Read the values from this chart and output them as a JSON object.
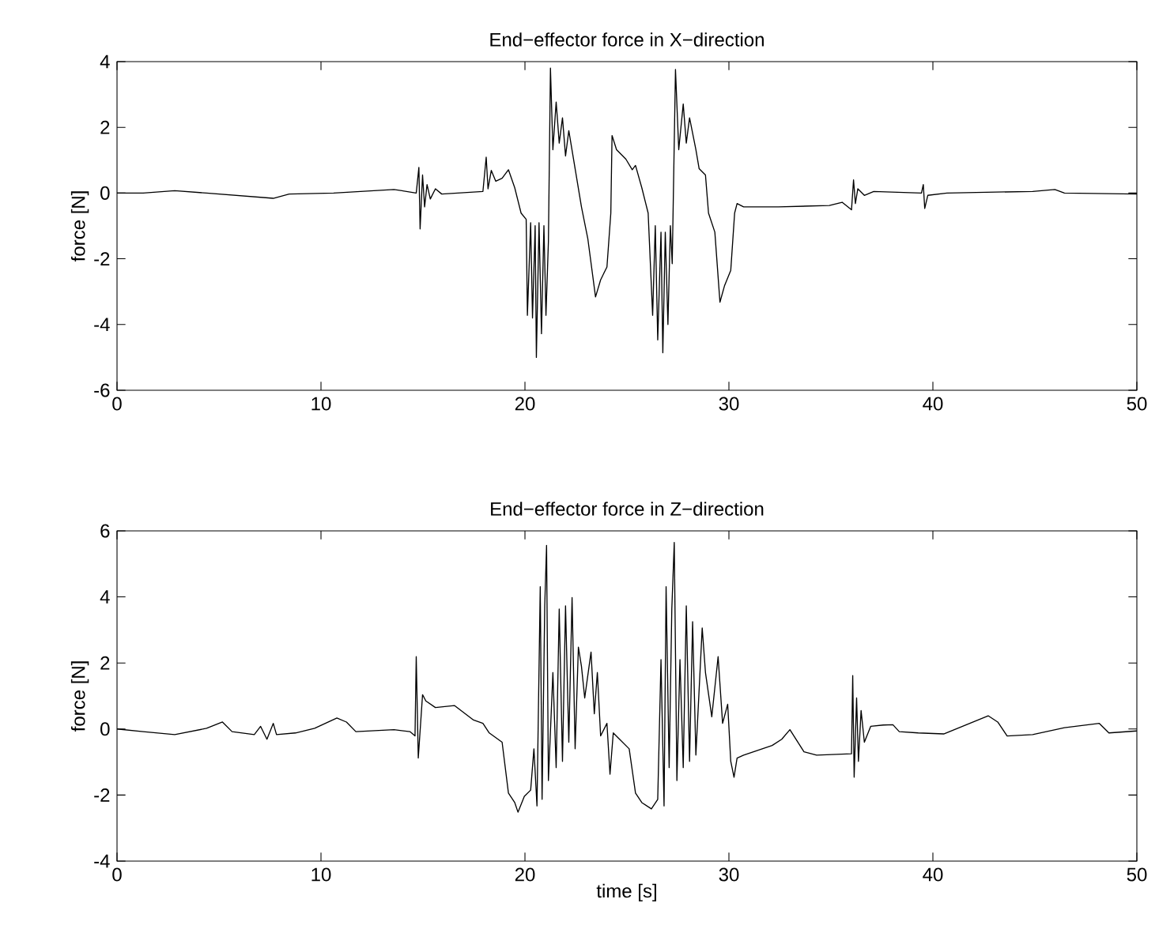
{
  "chart_data": [
    {
      "type": "line",
      "title": "End−effector force in X−direction",
      "ylabel": "force [N]",
      "color": "#000000",
      "xlim": [
        0,
        50
      ],
      "ylim": [
        -6,
        4
      ],
      "xticks": [
        0,
        10,
        20,
        30,
        40,
        50
      ],
      "yticks": [
        -6,
        -4,
        -2,
        0,
        2,
        4
      ],
      "x": [
        0,
        1.28,
        2.83,
        4.39,
        7.66,
        8.44,
        10.62,
        13.58,
        14.67,
        14.8,
        14.86,
        14.98,
        15.08,
        15.2,
        15.36,
        15.61,
        15.92,
        17.94,
        18.1,
        18.19,
        18.35,
        18.57,
        18.88,
        19.19,
        19.5,
        19.81,
        20.06,
        20.12,
        20.28,
        20.37,
        20.5,
        20.56,
        20.69,
        20.81,
        20.93,
        21.03,
        21.15,
        21.25,
        21.37,
        21.53,
        21.68,
        21.84,
        21.99,
        22.15,
        22.46,
        22.77,
        23.08,
        23.46,
        23.71,
        24.02,
        24.21,
        24.27,
        24.49,
        24.95,
        25.26,
        25.42,
        25.73,
        26.04,
        26.26,
        26.39,
        26.51,
        26.67,
        26.76,
        26.88,
        27.01,
        27.13,
        27.22,
        27.38,
        27.54,
        27.76,
        27.91,
        28.07,
        28.38,
        28.54,
        28.85,
        29.0,
        29.31,
        29.56,
        29.78,
        30.09,
        30.28,
        30.4,
        30.72,
        32.43,
        34.92,
        35.55,
        36.01,
        36.11,
        36.2,
        36.32,
        36.64,
        37.1,
        39.44,
        39.53,
        39.6,
        39.75,
        40.69,
        44.89,
        45.98,
        46.45,
        50
      ],
      "values": [
        0,
        0,
        0.07,
        0,
        -0.16,
        -0.03,
        0,
        0.11,
        0,
        0.78,
        -1.09,
        0.55,
        -0.42,
        0.26,
        -0.18,
        0.13,
        -0.03,
        0.05,
        1.09,
        0.13,
        0.69,
        0.36,
        0.45,
        0.71,
        0.16,
        -0.61,
        -0.8,
        -3.72,
        -0.9,
        -3.8,
        -0.99,
        -5.0,
        -0.9,
        -4.28,
        -0.99,
        -3.72,
        -1.48,
        3.8,
        1.32,
        2.77,
        1.52,
        2.29,
        1.13,
        1.9,
        0.74,
        -0.42,
        -1.38,
        -3.16,
        -2.64,
        -2.25,
        -0.61,
        1.75,
        1.32,
        1.03,
        0.71,
        0.84,
        0.16,
        -0.61,
        -3.72,
        -0.99,
        -4.47,
        -1.19,
        -4.86,
        -1.19,
        -4.0,
        -0.99,
        -2.15,
        3.76,
        1.32,
        2.71,
        1.52,
        2.29,
        1.32,
        0.74,
        0.55,
        -0.61,
        -1.19,
        -3.32,
        -2.83,
        -2.35,
        -0.61,
        -0.32,
        -0.42,
        -0.42,
        -0.38,
        -0.28,
        -0.51,
        0.4,
        -0.32,
        0.13,
        -0.07,
        0.05,
        0,
        0.26,
        -0.47,
        -0.07,
        0,
        0.05,
        0.11,
        0,
        -0.03
      ]
    },
    {
      "type": "line",
      "title": "End−effector force in Z−direction",
      "xlabel": "time [s]",
      "ylabel": "force [N]",
      "color": "#000000",
      "xlim": [
        0,
        50
      ],
      "ylim": [
        -4,
        6
      ],
      "xticks": [
        0,
        10,
        20,
        30,
        40,
        50
      ],
      "yticks": [
        -4,
        -2,
        0,
        2,
        4,
        6
      ],
      "x": [
        0,
        1.28,
        2.83,
        4.39,
        5.17,
        5.64,
        6.73,
        7.04,
        7.35,
        7.66,
        7.82,
        8.75,
        9.69,
        10.78,
        11.25,
        11.71,
        13.58,
        14.36,
        14.61,
        14.67,
        14.77,
        14.98,
        15.14,
        15.61,
        16.54,
        17.48,
        17.94,
        18.25,
        18.88,
        19.19,
        19.5,
        19.66,
        19.97,
        20.28,
        20.44,
        20.59,
        20.75,
        20.84,
        20.97,
        21.06,
        21.15,
        21.37,
        21.53,
        21.68,
        21.84,
        21.99,
        22.15,
        22.31,
        22.46,
        22.62,
        22.77,
        22.93,
        23.24,
        23.4,
        23.55,
        23.71,
        24.02,
        24.17,
        24.33,
        24.64,
        25.11,
        25.42,
        25.73,
        26.2,
        26.51,
        26.67,
        26.82,
        26.92,
        27.07,
        27.2,
        27.32,
        27.45,
        27.6,
        27.76,
        27.91,
        28.07,
        28.22,
        28.38,
        28.69,
        28.85,
        29.16,
        29.47,
        29.69,
        29.94,
        30.09,
        30.25,
        30.4,
        30.72,
        32.12,
        32.59,
        32.99,
        33.68,
        34.3,
        36.01,
        36.07,
        36.14,
        36.26,
        36.35,
        36.48,
        36.64,
        36.95,
        37.57,
        38.04,
        38.35,
        39.28,
        40.53,
        42.71,
        43.18,
        43.64,
        44.89,
        46.45,
        48.16,
        48.63,
        50
      ],
      "values": [
        0,
        -0.08,
        -0.17,
        0.02,
        0.21,
        -0.08,
        -0.17,
        0.08,
        -0.31,
        0.17,
        -0.17,
        -0.12,
        0.02,
        0.33,
        0.21,
        -0.08,
        -0.02,
        -0.08,
        -0.21,
        2.19,
        -0.88,
        1.04,
        0.85,
        0.65,
        0.71,
        0.27,
        0.17,
        -0.12,
        -0.4,
        -1.94,
        -2.23,
        -2.52,
        -2.04,
        -1.85,
        -0.6,
        -2.33,
        4.31,
        -2.13,
        3.73,
        5.56,
        -1.56,
        1.71,
        -1.17,
        3.63,
        -0.98,
        3.73,
        -0.4,
        3.98,
        -0.6,
        2.48,
        1.9,
        0.94,
        2.33,
        0.46,
        1.71,
        -0.21,
        0.17,
        -1.37,
        -0.12,
        -0.31,
        -0.6,
        -1.94,
        -2.23,
        -2.42,
        -2.13,
        2.1,
        -2.33,
        4.31,
        -1.17,
        3.63,
        5.65,
        -1.56,
        2.1,
        -1.17,
        3.73,
        -0.98,
        3.25,
        -0.79,
        3.06,
        1.71,
        0.37,
        2.19,
        0.17,
        0.75,
        -0.98,
        -1.46,
        -0.88,
        -0.79,
        -0.5,
        -0.31,
        -0.02,
        -0.69,
        -0.79,
        -0.75,
        1.62,
        -1.46,
        0.94,
        -0.98,
        0.56,
        -0.4,
        0.08,
        0.12,
        0.13,
        -0.08,
        -0.12,
        -0.15,
        0.4,
        0.21,
        -0.21,
        -0.17,
        0.04,
        0.17,
        -0.12,
        -0.06
      ]
    }
  ]
}
